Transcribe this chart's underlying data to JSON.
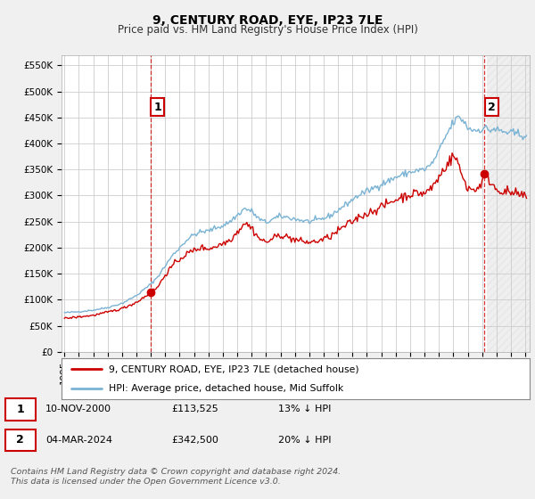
{
  "title": "9, CENTURY ROAD, EYE, IP23 7LE",
  "subtitle": "Price paid vs. HM Land Registry's House Price Index (HPI)",
  "ylabel_ticks": [
    "£0",
    "£50K",
    "£100K",
    "£150K",
    "£200K",
    "£250K",
    "£300K",
    "£350K",
    "£400K",
    "£450K",
    "£500K",
    "£550K"
  ],
  "ytick_values": [
    0,
    50000,
    100000,
    150000,
    200000,
    250000,
    300000,
    350000,
    400000,
    450000,
    500000,
    550000
  ],
  "ylim": [
    0,
    570000
  ],
  "xlim_start": 1994.8,
  "xlim_end": 2027.3,
  "hpi_color": "#7ab3d4",
  "price_color": "#cc0000",
  "bg_color": "#f0f0f0",
  "plot_bg_color": "#ffffff",
  "grid_color": "#cccccc",
  "annotation_box_color": "#cc0000",
  "sale1_x": 2001.0,
  "sale1_y": 113525,
  "sale1_label": "1",
  "sale1_date": "10-NOV-2000",
  "sale1_price": "£113,525",
  "sale1_hpi": "13% ↓ HPI",
  "sale2_x": 2024.17,
  "sale2_y": 342500,
  "sale2_label": "2",
  "sale2_date": "04-MAR-2024",
  "sale2_price": "£342,500",
  "sale2_hpi": "20% ↓ HPI",
  "legend_label1": "9, CENTURY ROAD, EYE, IP23 7LE (detached house)",
  "legend_label2": "HPI: Average price, detached house, Mid Suffolk",
  "footer": "Contains HM Land Registry data © Crown copyright and database right 2024.\nThis data is licensed under the Open Government Licence v3.0.",
  "title_fontsize": 10,
  "subtitle_fontsize": 8.5,
  "tick_fontsize": 7.5
}
